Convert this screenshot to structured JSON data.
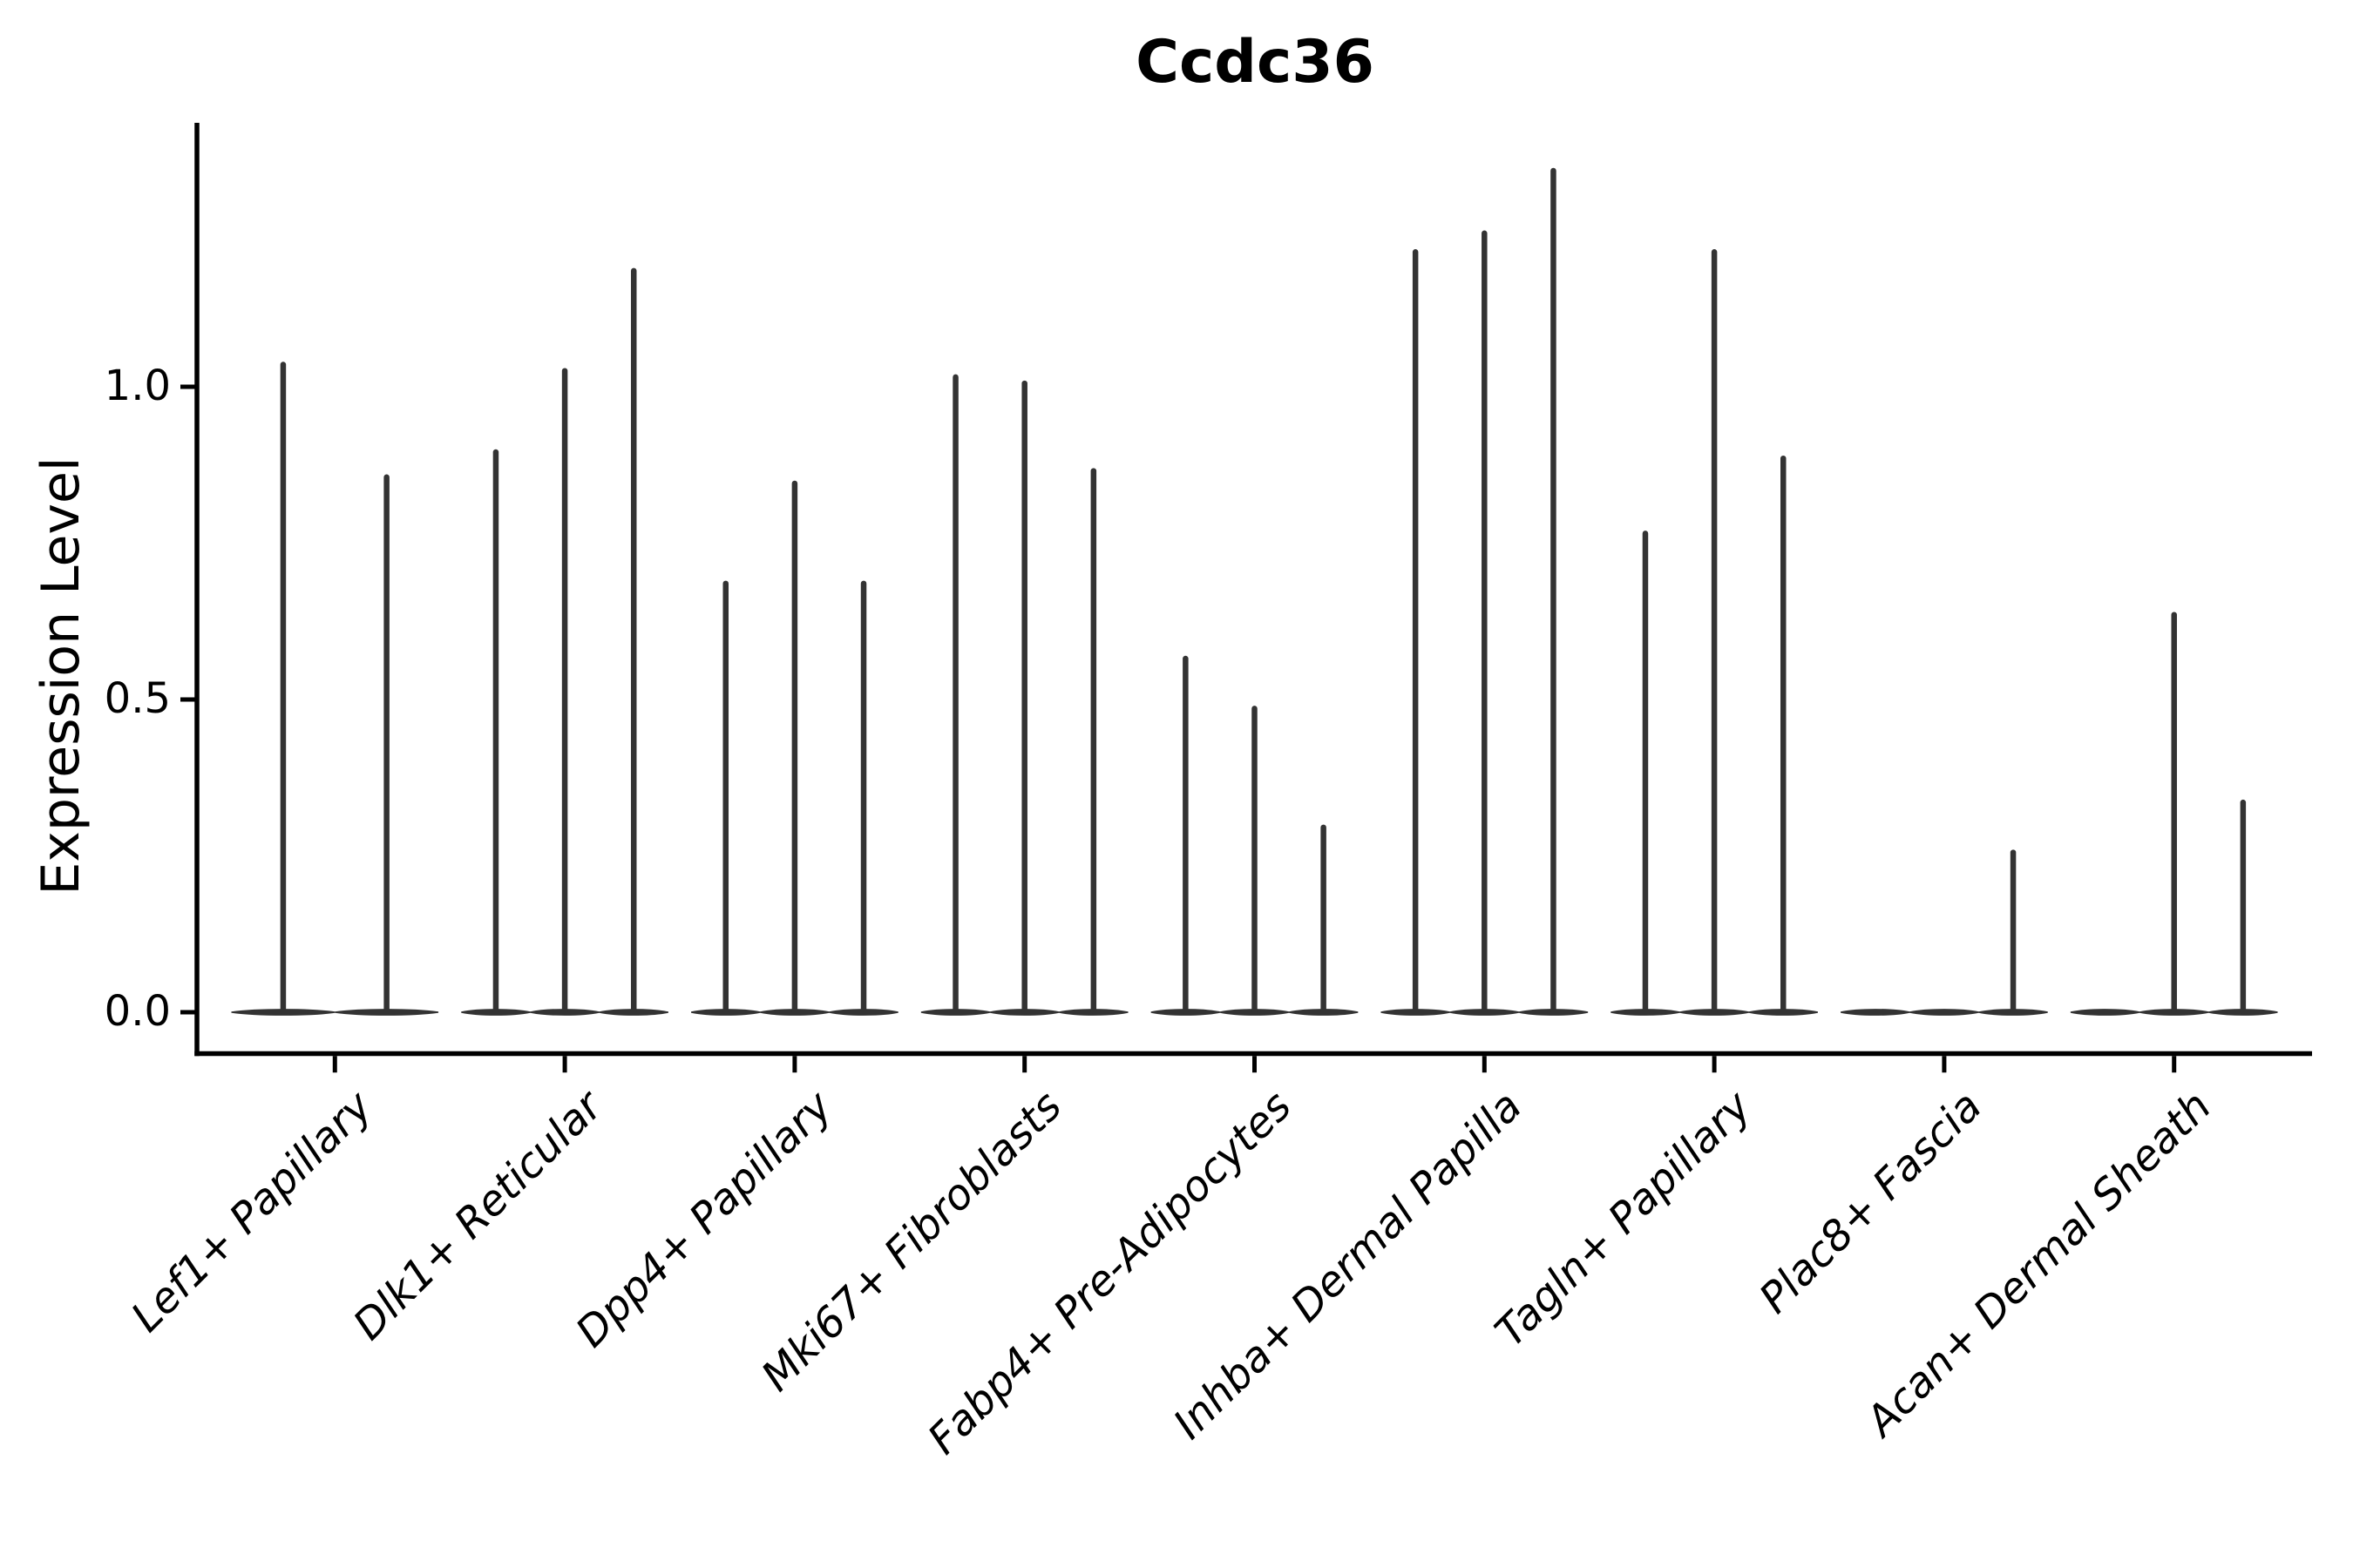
{
  "page": {
    "background_color": "#ffffff",
    "axis_color": "#000000",
    "violin_color": "#333333"
  },
  "chart_data": {
    "type": "violin",
    "title": "Ccdc36",
    "xlabel": "",
    "ylabel": "Expression Level",
    "grid": false,
    "legend": "none",
    "ylim": [
      -0.07,
      1.42
    ],
    "ytick_values": [
      0.0,
      0.5,
      1.0
    ],
    "ytick_labels": [
      "0.0",
      "0.5",
      "1.0"
    ],
    "categories": [
      "Lef1+ Papillary",
      "Dlk1+ Reticular",
      "Dpp4+ Papillary",
      "Mki67+ Fibroblasts",
      "Fabp4+ Pre-Adipocytes",
      "Inhba+ Dermal Papilla",
      "Tagln+ Papillary",
      "Plac8+ Fascia",
      "Acan+ Dermal Sheath"
    ],
    "groups": [
      {
        "violins": [
          {
            "offset": -0.225,
            "width": 0.45,
            "max": 1.04
          },
          {
            "offset": 0.225,
            "width": 0.45,
            "max": 0.86
          }
        ]
      },
      {
        "violins": [
          {
            "offset": -0.3,
            "width": 0.3,
            "max": 0.9
          },
          {
            "offset": 0.0,
            "width": 0.3,
            "max": 1.03
          },
          {
            "offset": 0.3,
            "width": 0.3,
            "max": 1.19
          }
        ]
      },
      {
        "violins": [
          {
            "offset": -0.3,
            "width": 0.3,
            "max": 0.69
          },
          {
            "offset": 0.0,
            "width": 0.3,
            "max": 0.85
          },
          {
            "offset": 0.3,
            "width": 0.3,
            "max": 0.69
          }
        ]
      },
      {
        "violins": [
          {
            "offset": -0.3,
            "width": 0.3,
            "max": 1.02
          },
          {
            "offset": 0.0,
            "width": 0.3,
            "max": 1.01
          },
          {
            "offset": 0.3,
            "width": 0.3,
            "max": 0.87
          }
        ]
      },
      {
        "violins": [
          {
            "offset": -0.3,
            "width": 0.3,
            "max": 0.57
          },
          {
            "offset": 0.0,
            "width": 0.3,
            "max": 0.49
          },
          {
            "offset": 0.3,
            "width": 0.3,
            "max": 0.3
          }
        ]
      },
      {
        "violins": [
          {
            "offset": -0.3,
            "width": 0.3,
            "max": 1.22
          },
          {
            "offset": 0.0,
            "width": 0.3,
            "max": 1.25
          },
          {
            "offset": 0.3,
            "width": 0.3,
            "max": 1.35
          }
        ]
      },
      {
        "violins": [
          {
            "offset": -0.3,
            "width": 0.3,
            "max": 0.77
          },
          {
            "offset": 0.0,
            "width": 0.3,
            "max": 1.22
          },
          {
            "offset": 0.3,
            "width": 0.3,
            "max": 0.89
          }
        ]
      },
      {
        "violins": [
          {
            "offset": -0.3,
            "width": 0.3,
            "max": 0.0
          },
          {
            "offset": 0.0,
            "width": 0.3,
            "max": 0.0
          },
          {
            "offset": 0.3,
            "width": 0.3,
            "max": 0.26
          }
        ]
      },
      {
        "violins": [
          {
            "offset": -0.3,
            "width": 0.3,
            "max": 0.0
          },
          {
            "offset": 0.0,
            "width": 0.3,
            "max": 0.64
          },
          {
            "offset": 0.3,
            "width": 0.3,
            "max": 0.34
          }
        ]
      }
    ]
  }
}
